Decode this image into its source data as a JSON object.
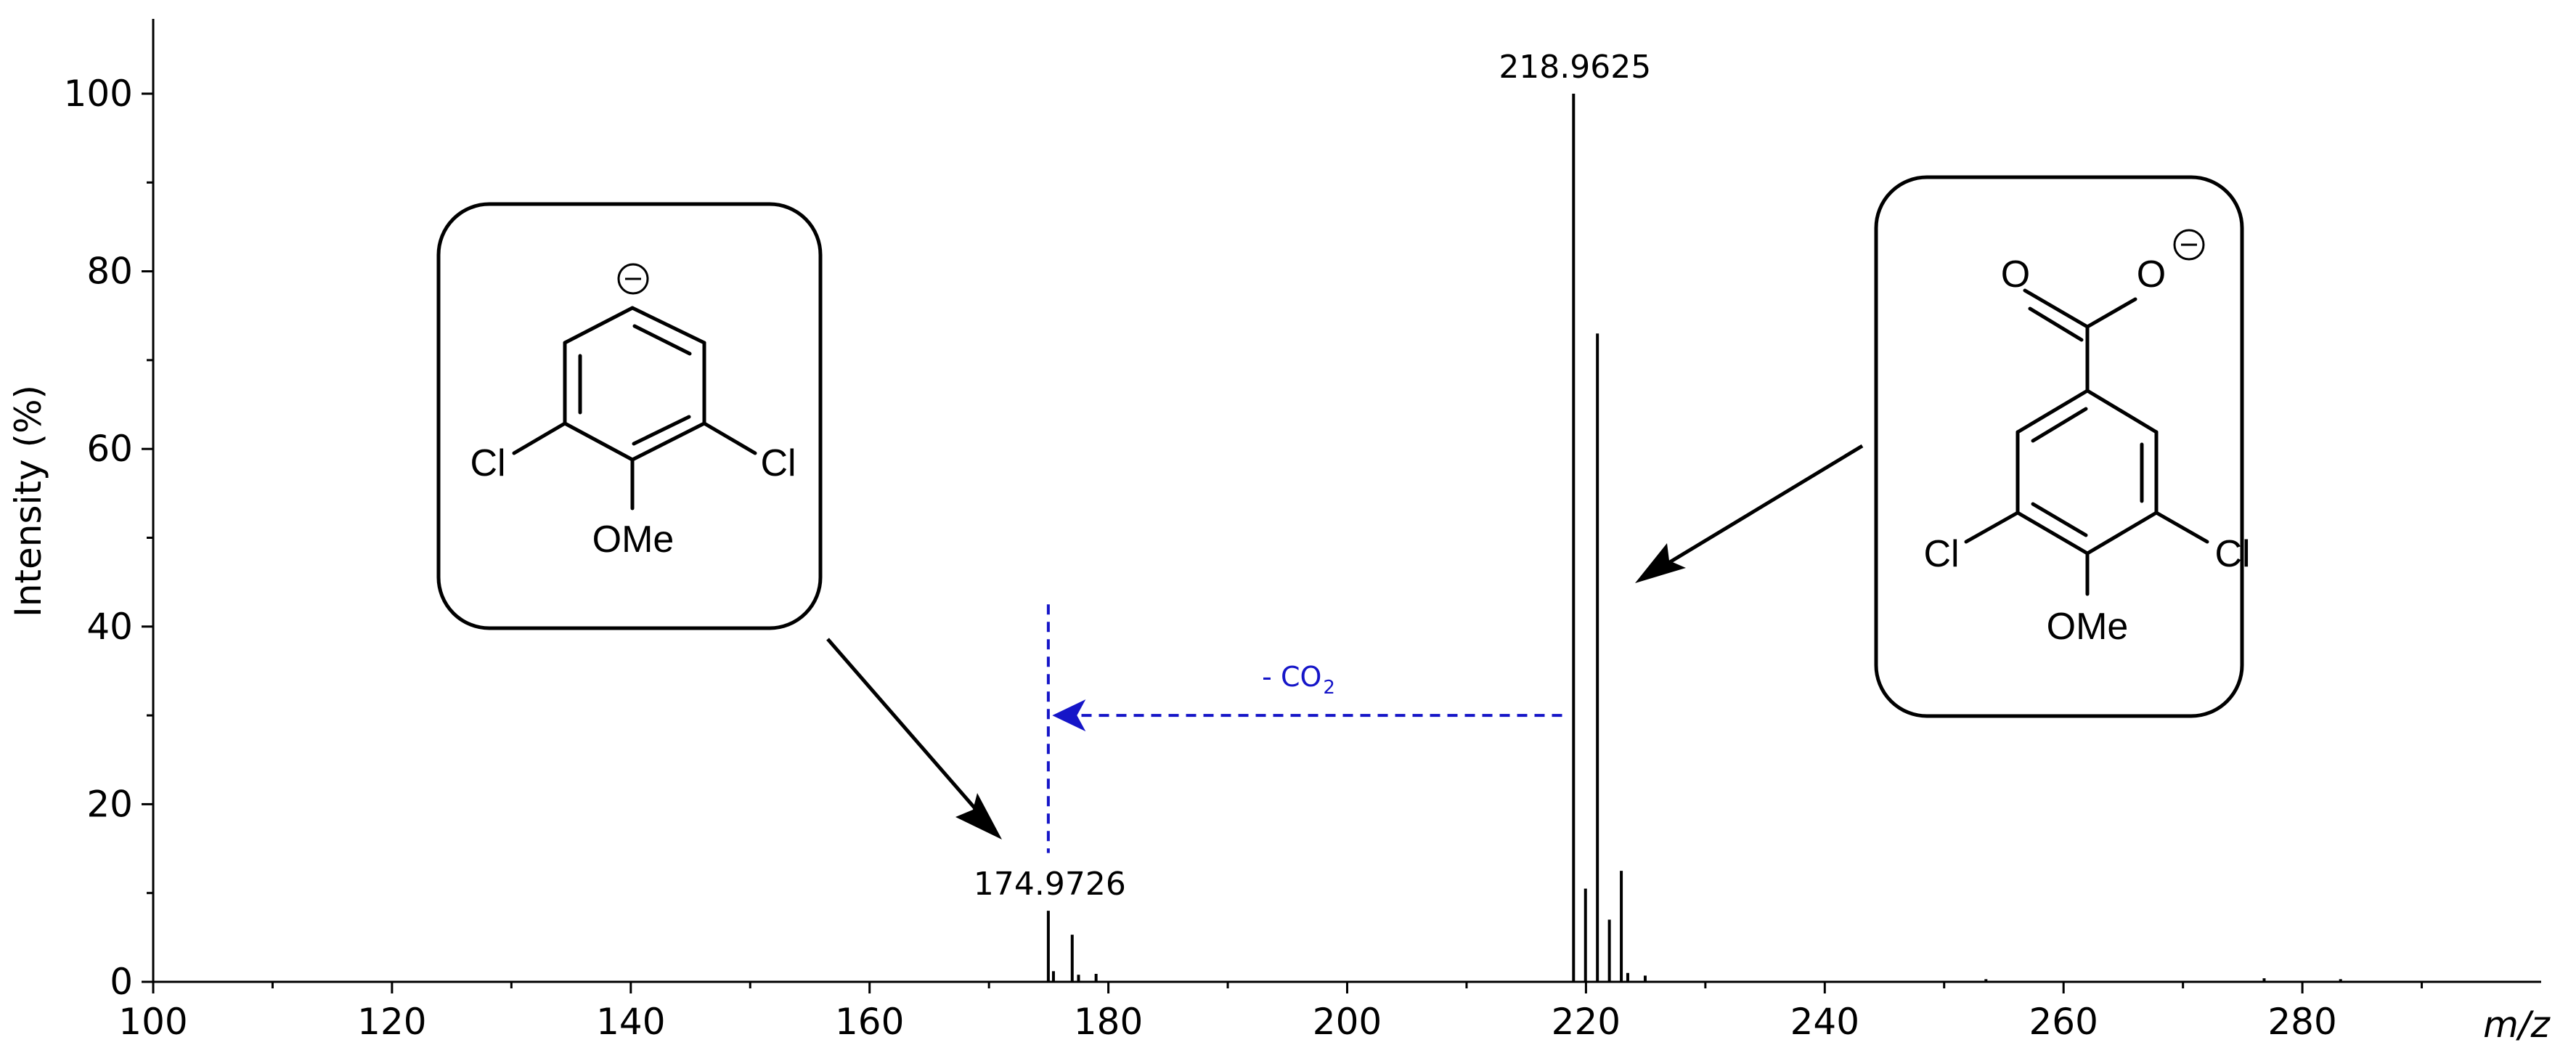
{
  "chart_data": {
    "type": "line",
    "title": "",
    "xlabel": "m/z",
    "ylabel": "Intensity (%)",
    "xlim": [
      100,
      300
    ],
    "ylim": [
      0,
      105
    ],
    "x_ticks": [
      100,
      120,
      140,
      160,
      180,
      200,
      220,
      240,
      260,
      280
    ],
    "y_ticks": [
      0,
      20,
      40,
      60,
      80,
      100
    ],
    "grid": false,
    "legend": "none",
    "series": [
      {
        "style": "stick spectrum",
        "points": [
          {
            "x": 174.97,
            "y": 8
          },
          {
            "x": 175.4,
            "y": 1.2
          },
          {
            "x": 176.97,
            "y": 5.3
          },
          {
            "x": 177.5,
            "y": 0.8
          },
          {
            "x": 178.97,
            "y": 0.9
          },
          {
            "x": 218.96,
            "y": 100
          },
          {
            "x": 219.96,
            "y": 10.5
          },
          {
            "x": 220.96,
            "y": 73
          },
          {
            "x": 221.96,
            "y": 7
          },
          {
            "x": 222.96,
            "y": 12.5
          },
          {
            "x": 223.5,
            "y": 1
          },
          {
            "x": 224.96,
            "y": 0.7
          },
          {
            "x": 253.5,
            "y": 0.3
          },
          {
            "x": 276.8,
            "y": 0.4
          },
          {
            "x": 283.2,
            "y": 0.3
          }
        ]
      }
    ],
    "peak_labels": [
      {
        "x": 218.96,
        "y": 100,
        "text": "218.9625"
      },
      {
        "x": 174.97,
        "y": 8,
        "text": "174.9726"
      }
    ],
    "annotations": {
      "loss_label": "- CO",
      "loss_subscript": "2",
      "loss_arrow": {
        "from_x": 218,
        "to_x": 175.3,
        "at_y": 30,
        "marker_x": 174.97,
        "marker_top_y": 42.5,
        "marker_bottom_y": 14.5
      }
    }
  },
  "structures": {
    "left": {
      "charge": "⊖",
      "cl_left": "Cl",
      "cl_right": "Cl",
      "substituent": "OMe"
    },
    "right": {
      "o_carbonyl": "O",
      "o_anion": "O",
      "charge": "⊖",
      "cl_left": "Cl",
      "cl_right": "Cl",
      "substituent": "OMe"
    }
  },
  "colors": {
    "spectrum": "#000000",
    "loss_arrow": "#1515c8",
    "axis": "#000000"
  }
}
